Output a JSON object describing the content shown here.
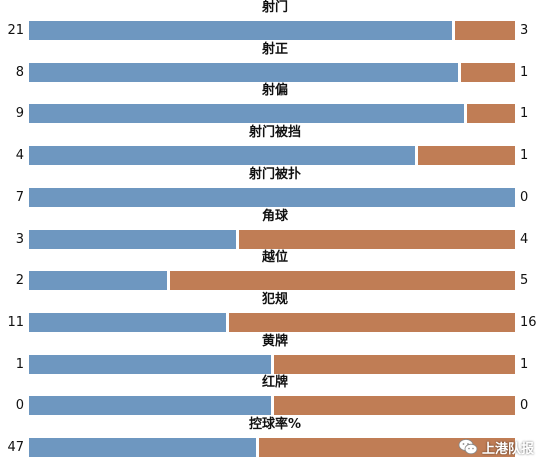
{
  "chart_data": {
    "type": "bar",
    "orientation": "horizontal-stacked-comparison",
    "categories": [
      "射门",
      "射正",
      "射偏",
      "射门被挡",
      "射门被扑",
      "角球",
      "越位",
      "犯规",
      "黄牌",
      "红牌",
      "控球率%"
    ],
    "series": [
      {
        "values": [
          21,
          8,
          9,
          4,
          7,
          3,
          2,
          11,
          1,
          0,
          47
        ]
      },
      {
        "values": [
          3,
          1,
          1,
          1,
          0,
          4,
          5,
          16,
          1,
          0,
          53
        ]
      }
    ],
    "series_colors": [
      "#6e97c0",
      "#c07d55"
    ],
    "away_value_labels": [
      "3",
      "1",
      "1",
      "1",
      "0",
      "4",
      "5",
      "16",
      "1",
      "0",
      ""
    ]
  },
  "watermark": {
    "icon": "wechat-icon",
    "text": "上港队报"
  }
}
